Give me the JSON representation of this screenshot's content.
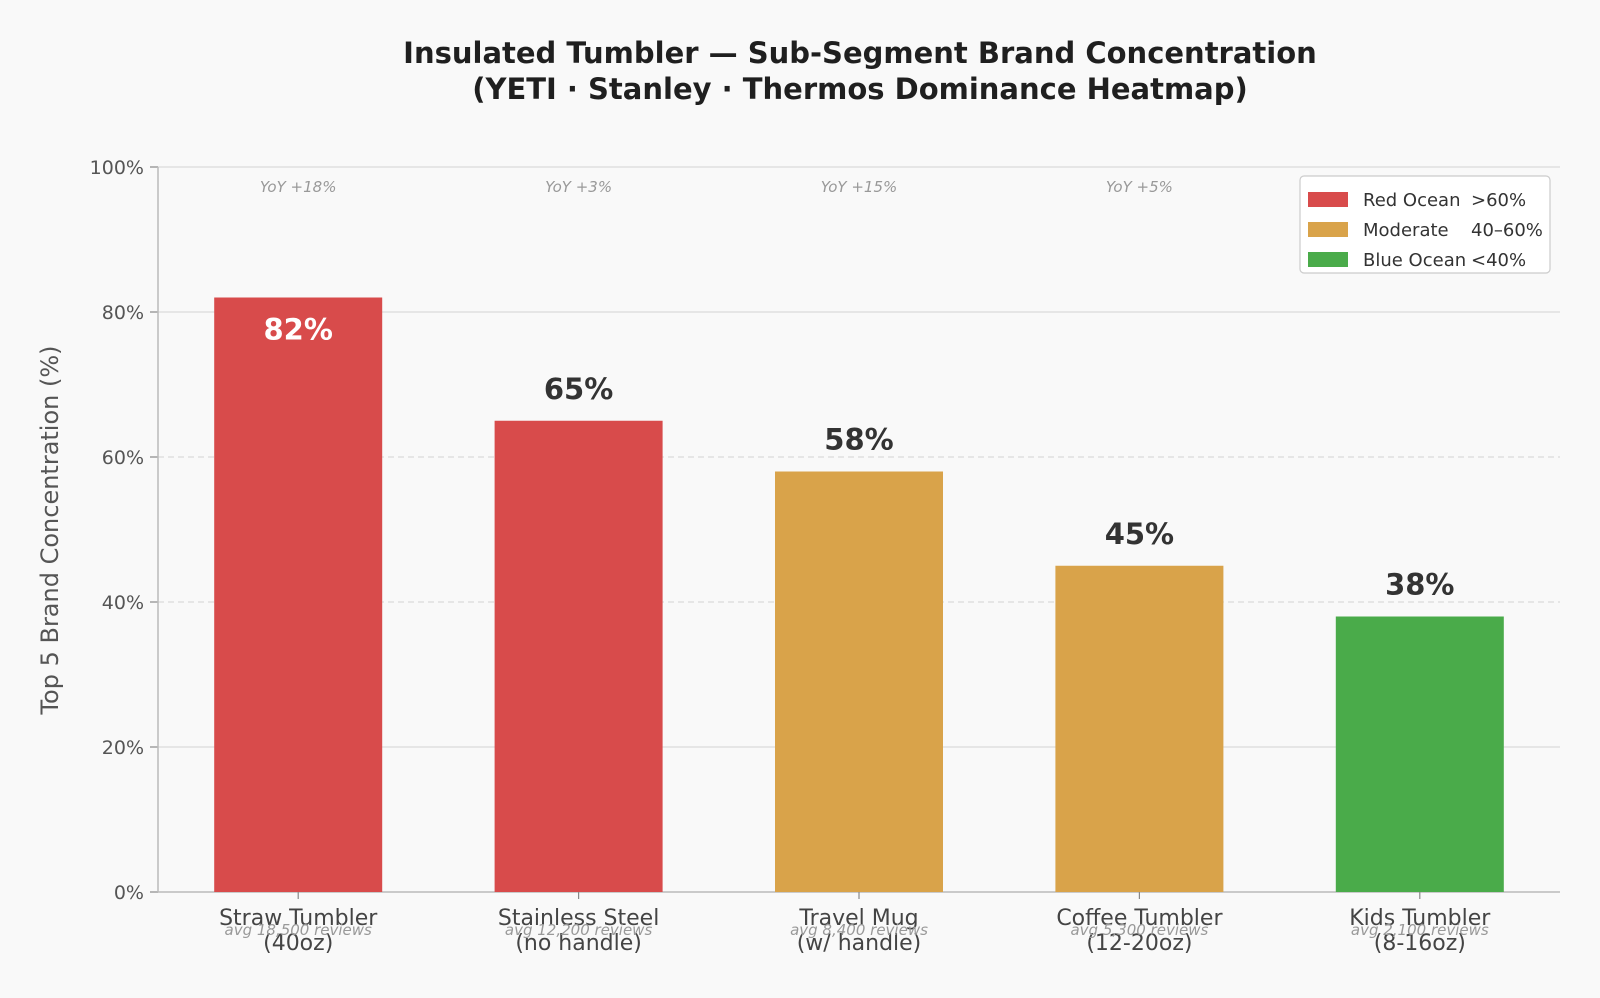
{
  "chart_data": {
    "type": "bar",
    "title": [
      "Insulated Tumbler — Sub-Segment Brand Concentration",
      "(YETI · Stanley · Thermos Dominance Heatmap)"
    ],
    "ylabel": "Top 5 Brand Concentration (%)",
    "ylim": [
      0,
      100
    ],
    "yticks": [
      0,
      20,
      40,
      60,
      80,
      100
    ],
    "ytick_labels": [
      "0%",
      "20%",
      "40%",
      "60%",
      "80%",
      "100%"
    ],
    "grid": true,
    "categories": [
      {
        "line1": "Straw Tumbler",
        "line2": "(40oz)",
        "reviews": "avg 18,500 reviews",
        "yoy": "YoY +18%",
        "value": 82,
        "value_label": "82%",
        "tier": "red"
      },
      {
        "line1": "Stainless Steel",
        "line2": "(no handle)",
        "reviews": "avg 12,200 reviews",
        "yoy": "YoY +3%",
        "value": 65,
        "value_label": "65%",
        "tier": "red"
      },
      {
        "line1": "Travel Mug",
        "line2": "(w/ handle)",
        "reviews": "avg 8,400 reviews",
        "yoy": "YoY +15%",
        "value": 58,
        "value_label": "58%",
        "tier": "moderate"
      },
      {
        "line1": "Coffee Tumbler",
        "line2": "(12-20oz)",
        "reviews": "avg 5,300 reviews",
        "yoy": "YoY +5%",
        "value": 45,
        "value_label": "45%",
        "tier": "moderate"
      },
      {
        "line1": "Kids Tumbler",
        "line2": "(8-16oz)",
        "reviews": "avg 2,100 reviews",
        "yoy": "",
        "value": 38,
        "value_label": "38%",
        "tier": "blue"
      }
    ],
    "legend": {
      "placement": "top-right",
      "items": [
        {
          "label": "Red Ocean",
          "range": ">60%",
          "color": "#d84b4b"
        },
        {
          "label": "Moderate",
          "range": "40–60%",
          "color": "#d9a34a"
        },
        {
          "label": "Blue Ocean",
          "range": "<40%",
          "color": "#4aab4a"
        }
      ]
    },
    "colors": {
      "red": "#d84b4b",
      "moderate": "#d9a34a",
      "blue": "#4aab4a",
      "value_on_bar": "#ffffff",
      "value_above_bar": "#333333"
    }
  }
}
